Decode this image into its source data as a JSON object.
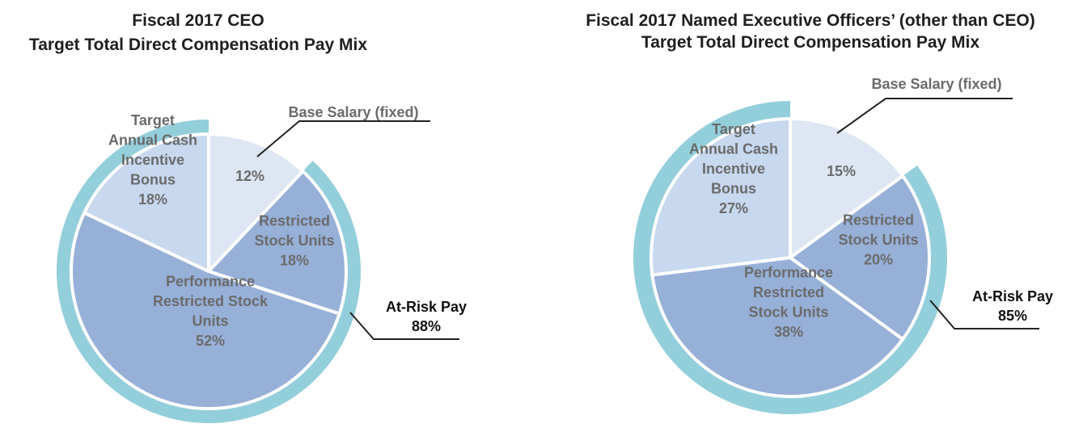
{
  "colors": {
    "ring": "#93cedb",
    "base_salary": "#dde6f2",
    "annual_bonus": "#c7d8ef",
    "rsu": "#97b0d8",
    "prsu": "#97b0d8",
    "separator": "#ffffff",
    "leader_line": "#222222"
  },
  "chart_data": [
    {
      "type": "pie",
      "title": [
        "Fiscal 2017 CEO",
        "Target Total Direct Compensation Pay Mix"
      ],
      "slices": [
        {
          "name": "Base Salary (fixed)",
          "value": 12,
          "color_key": "base_salary",
          "label_lines": [
            "12%"
          ]
        },
        {
          "name": "Restricted Stock Units",
          "value": 18,
          "color_key": "rsu",
          "label_lines": [
            "Restricted",
            "Stock Units",
            "18%"
          ]
        },
        {
          "name": "Performance Restricted Stock Units",
          "value": 52,
          "color_key": "prsu",
          "label_lines": [
            "Performance",
            "Restricted Stock",
            "Units",
            "52%"
          ]
        },
        {
          "name": "Target Annual Cash Incentive Bonus",
          "value": 18,
          "color_key": "annual_bonus",
          "label_lines": [
            "Target",
            "Annual Cash",
            "Incentive",
            "Bonus",
            "18%"
          ]
        }
      ],
      "callout": "Base Salary (fixed)",
      "at_risk": {
        "label": "At-Risk Pay",
        "value": "88%",
        "percent": 88
      }
    },
    {
      "type": "pie",
      "title": [
        "Fiscal 2017 Named Executive Officers’ (other than CEO)",
        "Target Total Direct Compensation Pay Mix"
      ],
      "slices": [
        {
          "name": "Base Salary (fixed)",
          "value": 15,
          "color_key": "base_salary",
          "label_lines": [
            "15%"
          ]
        },
        {
          "name": "Restricted Stock Units",
          "value": 20,
          "color_key": "rsu",
          "label_lines": [
            "Restricted",
            "Stock Units",
            "20%"
          ]
        },
        {
          "name": "Performance Restricted Stock Units",
          "value": 38,
          "color_key": "prsu",
          "label_lines": [
            "Performance",
            "Restricted",
            "Stock Units",
            "38%"
          ]
        },
        {
          "name": "Target Annual Cash Incentive Bonus",
          "value": 27,
          "color_key": "annual_bonus",
          "label_lines": [
            "Target",
            "Annual Cash",
            "Incentive",
            "Bonus",
            "27%"
          ]
        }
      ],
      "callout": "Base Salary (fixed)",
      "at_risk": {
        "label": "At-Risk Pay",
        "value": "85%",
        "percent": 85
      }
    }
  ]
}
